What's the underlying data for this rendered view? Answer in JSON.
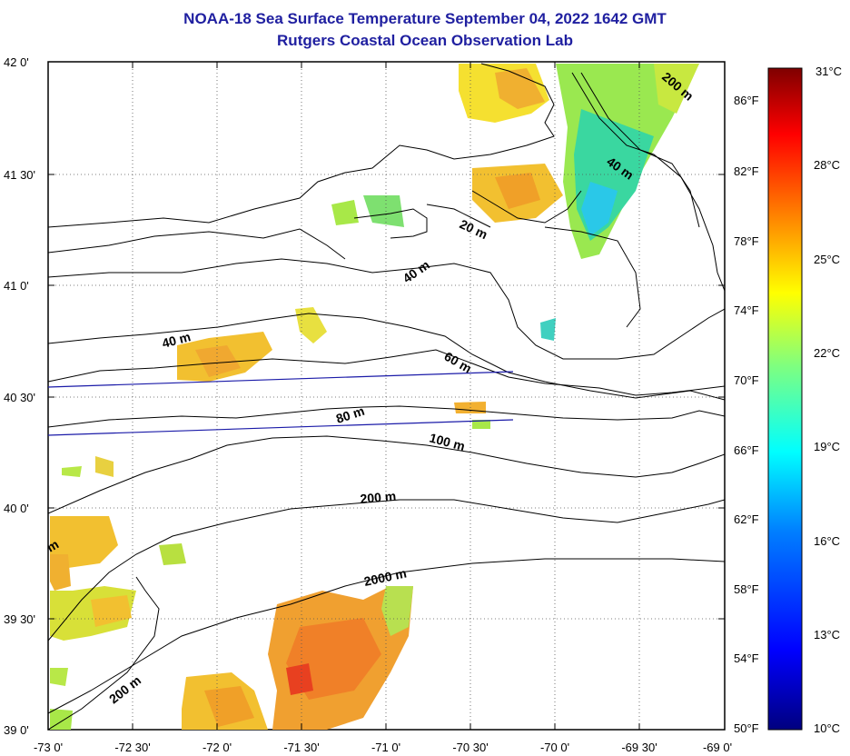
{
  "title": "NOAA-18 Sea Surface Temperature September 04, 2022 1642 GMT",
  "subtitle": "Rutgers Coastal Ocean Observation Lab",
  "lat_labels": [
    "42 0'",
    "41 30'",
    "41 0'",
    "40 30'",
    "40 0'",
    "39 30'",
    "39 0'"
  ],
  "lon_labels": [
    "-73 0'",
    "-72 30'",
    "-72 0'",
    "-71 30'",
    "-71 0'",
    "-70 30'",
    "-70 0'",
    "-69 30'",
    "-69 0'"
  ],
  "colorbar": {
    "celsius": [
      "31°C",
      "28°C",
      "25°C",
      "22°C",
      "19°C",
      "16°C",
      "13°C",
      "10°C"
    ],
    "fahrenheit": [
      "86°F",
      "82°F",
      "78°F",
      "74°F",
      "70°F",
      "66°F",
      "62°F",
      "58°F",
      "54°F",
      "50°F"
    ],
    "colors": [
      "#7f0000",
      "#ff0000",
      "#ff7f00",
      "#ffff00",
      "#7fff7f",
      "#00ffff",
      "#007fff",
      "#0000ff",
      "#00007f"
    ]
  },
  "contour_labels": [
    "200 m",
    "40 m",
    "20 m",
    "40 m",
    "40 m",
    "60 m",
    "80 m",
    "100 m",
    "200 m",
    "2000 m",
    "200 m",
    "m"
  ],
  "colors": {
    "title": "#1f1fa0",
    "land_outline": "#000000",
    "transect": "#1a1aa8"
  }
}
